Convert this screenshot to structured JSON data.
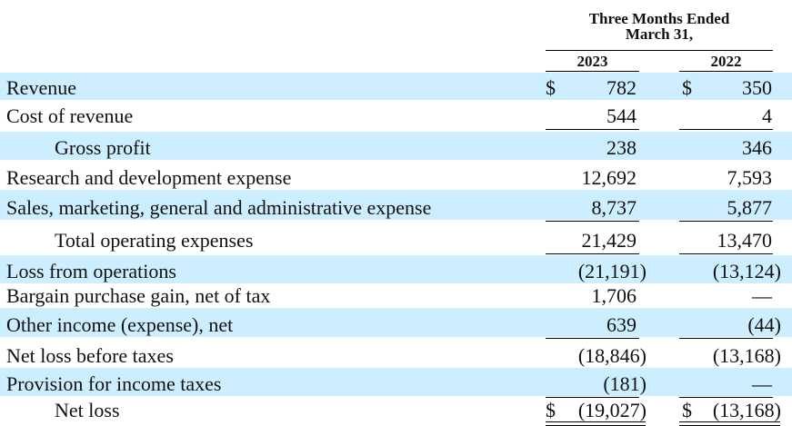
{
  "header": {
    "period": "Three Months Ended",
    "period_date": "March 31,",
    "col_2023": "2023",
    "col_2022": "2022"
  },
  "rows": [
    {
      "label": "Revenue",
      "dollar_2023": "$",
      "v2023": "782",
      "dollar_2022": "$",
      "v2022": "350"
    },
    {
      "label": "Cost of revenue",
      "v2023": "544",
      "v2022": "4"
    },
    {
      "label": "Gross profit",
      "v2023": "238",
      "v2022": "346"
    },
    {
      "label": "Research and development expense",
      "v2023": "12,692",
      "v2022": "7,593"
    },
    {
      "label": "Sales, marketing, general and administrative expense",
      "v2023": "8,737",
      "v2022": "5,877"
    },
    {
      "label": "Total operating expenses",
      "v2023": "21,429",
      "v2022": "13,470"
    },
    {
      "label": "Loss from operations",
      "v2023": "(21,191)",
      "v2022": "(13,124)"
    },
    {
      "label": "Bargain purchase gain, net of tax",
      "v2023": "1,706",
      "v2022": "—"
    },
    {
      "label": "Other income (expense), net",
      "v2023": "639",
      "v2022": "(44)"
    },
    {
      "label": "Net loss before taxes",
      "v2023": "(18,846)",
      "v2022": "(13,168)"
    },
    {
      "label": "Provision for income taxes",
      "v2023": "(181)",
      "v2022": "—"
    },
    {
      "label": "Net loss",
      "dollar_2023": "$",
      "v2023": "(19,027)",
      "dollar_2022": "$",
      "v2022": "(13,168)"
    }
  ],
  "colors": {
    "shade": "#cceeff"
  }
}
